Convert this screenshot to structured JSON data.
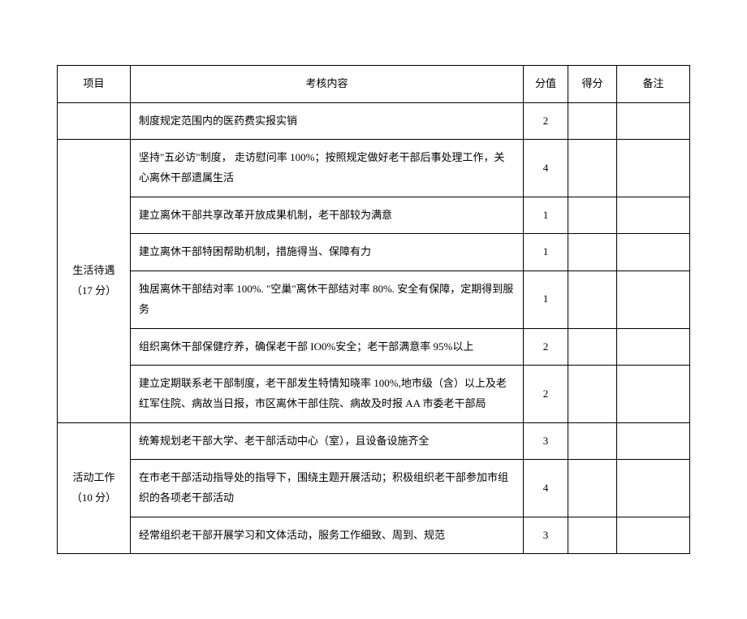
{
  "headers": {
    "category": "项目",
    "content": "考核内容",
    "score": "分值",
    "got": "得分",
    "remark": "备注"
  },
  "sections": [
    {
      "category": "",
      "rows": [
        {
          "content": "制度规定范围内的医药费实报实销",
          "score": "2"
        }
      ]
    },
    {
      "category": "生活待遇（17 分）",
      "rows": [
        {
          "content": "坚持\"五必访\"制度， 走访慰问率 100%；按照规定做好老干部后事处理工作，关心离休干部遗属生活",
          "score": "4"
        },
        {
          "content": "建立离休干部共享改革开放成果机制，老干部较为满意",
          "score": "1"
        },
        {
          "content": "建立离休干部特困帮助机制，措施得当、保障有力",
          "score": "1"
        },
        {
          "content": "独居离休干部结对率 100%. \"空巢\"离休干部结对率 80%. 安全有保障，定期得到服务",
          "score": "1"
        },
        {
          "content": "组织离休干部保健疗养，确保老干部 IO0%安全；老干部满意率 95%以上",
          "score": "2"
        },
        {
          "content": "建立定期联系老干部制度，老干部发生特情知晓率 100%,地市级（含）以上及老红军住院、病故当日报，市区离休干部住院、病故及时报 AA 市委老干部局",
          "score": "2"
        }
      ]
    },
    {
      "category": "活动工作（10 分）",
      "rows": [
        {
          "content": "统筹规划老干部大学、老干部活动中心（室），且设备设施齐全",
          "score": "3"
        },
        {
          "content": "在市老干部活动指导处的指导下，围绕主题开展活动；积极组织老干部参加市组织的各项老干部活动",
          "score": "4"
        },
        {
          "content": "经常组织老干部开展学习和文体活动，服务工作细致、周到、规范",
          "score": "3"
        }
      ]
    }
  ]
}
